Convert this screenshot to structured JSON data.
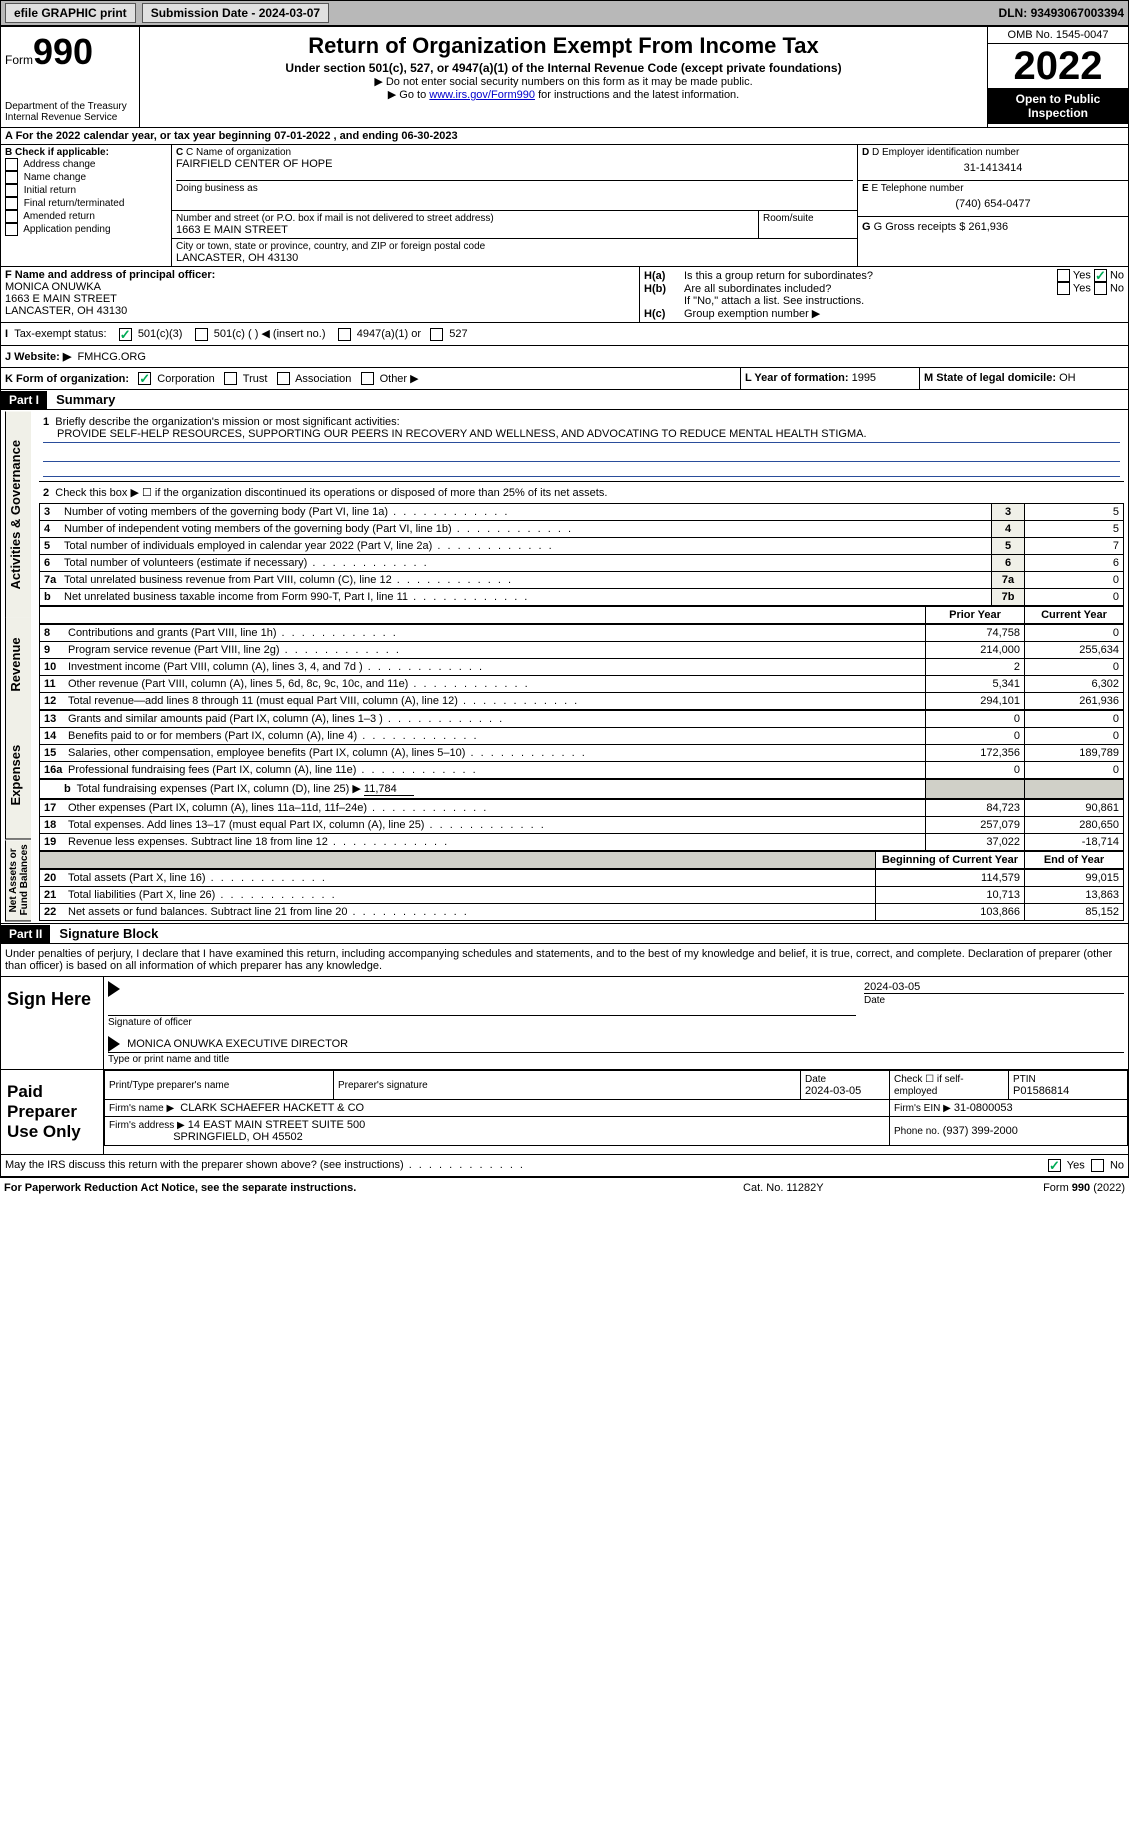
{
  "topbar": {
    "efile": "efile GRAPHIC print",
    "submission": "Submission Date - 2024-03-07",
    "dln_label": "DLN:",
    "dln": "93493067003394"
  },
  "header": {
    "form_word": "Form",
    "form_no": "990",
    "dept": "Department of the Treasury",
    "irs": "Internal Revenue Service",
    "title": "Return of Organization Exempt From Income Tax",
    "sub": "Under section 501(c), 527, or 4947(a)(1) of the Internal Revenue Code (except private foundations)",
    "note1": "▶ Do not enter social security numbers on this form as it may be made public.",
    "note2_a": "▶ Go to ",
    "note2_link": "www.irs.gov/Form990",
    "note2_b": " for instructions and the latest information.",
    "omb": "OMB No. 1545-0047",
    "year": "2022",
    "open": "Open to Public Inspection"
  },
  "a_line": "A For the 2022 calendar year, or tax year beginning 07-01-2022   , and ending 06-30-2023",
  "b": {
    "label": "B Check if applicable:",
    "items": [
      "Address change",
      "Name change",
      "Initial return",
      "Final return/terminated",
      "Amended return",
      "Application pending"
    ]
  },
  "c": {
    "name_lbl": "C Name of organization",
    "name": "FAIRFIELD CENTER OF HOPE",
    "dba_lbl": "Doing business as",
    "addr_lbl": "Number and street (or P.O. box if mail is not delivered to street address)",
    "room_lbl": "Room/suite",
    "addr": "1663 E MAIN STREET",
    "city_lbl": "City or town, state or province, country, and ZIP or foreign postal code",
    "city": "LANCASTER, OH  43130"
  },
  "d": {
    "lbl": "D Employer identification number",
    "val": "31-1413414"
  },
  "e": {
    "lbl": "E Telephone number",
    "val": "(740) 654-0477"
  },
  "g": {
    "lbl": "G Gross receipts $",
    "val": "261,936"
  },
  "f": {
    "lbl": "F  Name and address of principal officer:",
    "name": "MONICA ONUWKA",
    "addr1": "1663 E MAIN STREET",
    "addr2": "LANCASTER, OH  43130"
  },
  "h": {
    "a": "Is this a group return for subordinates?",
    "b": "Are all subordinates included?",
    "note": "If \"No,\" attach a list. See instructions.",
    "c": "Group exemption number ▶"
  },
  "i": {
    "lbl": "Tax-exempt status:",
    "opts": [
      "501(c)(3)",
      "501(c) (  ) ◀ (insert no.)",
      "4947(a)(1) or",
      "527"
    ]
  },
  "j": {
    "lbl": "J  Website: ▶",
    "val": "FMHCG.ORG"
  },
  "k": {
    "lbl": "K Form of organization:",
    "opts": [
      "Corporation",
      "Trust",
      "Association",
      "Other ▶"
    ]
  },
  "l": {
    "lbl": "L Year of formation:",
    "val": "1995"
  },
  "m": {
    "lbl": "M State of legal domicile:",
    "val": "OH"
  },
  "part1": {
    "hdr": "Part I",
    "title": "Summary",
    "mission_lbl": "Briefly describe the organization's mission or most significant activities:",
    "mission": "PROVIDE SELF-HELP RESOURCES, SUPPORTING OUR PEERS IN RECOVERY AND WELLNESS, AND ADVOCATING TO REDUCE MENTAL HEALTH STIGMA.",
    "line2": "Check this box ▶ ☐  if the organization discontinued its operations or disposed of more than 25% of its net assets.",
    "vlabels": {
      "ag": "Activities & Governance",
      "rev": "Revenue",
      "exp": "Expenses",
      "na": "Net Assets or Fund Balances"
    },
    "rows_ag": [
      {
        "n": "3",
        "d": "Number of voting members of the governing body (Part VI, line 1a)",
        "box": "3",
        "v": "5"
      },
      {
        "n": "4",
        "d": "Number of independent voting members of the governing body (Part VI, line 1b)",
        "box": "4",
        "v": "5"
      },
      {
        "n": "5",
        "d": "Total number of individuals employed in calendar year 2022 (Part V, line 2a)",
        "box": "5",
        "v": "7"
      },
      {
        "n": "6",
        "d": "Total number of volunteers (estimate if necessary)",
        "box": "6",
        "v": "6"
      },
      {
        "n": "7a",
        "d": "Total unrelated business revenue from Part VIII, column (C), line 12",
        "box": "7a",
        "v": "0"
      },
      {
        "n": "b",
        "d": "Net unrelated business taxable income from Form 990-T, Part I, line 11",
        "box": "7b",
        "v": "0"
      }
    ],
    "col_prior": "Prior Year",
    "col_curr": "Current Year",
    "rows_rev": [
      {
        "n": "8",
        "d": "Contributions and grants (Part VIII, line 1h)",
        "p": "74,758",
        "c": "0"
      },
      {
        "n": "9",
        "d": "Program service revenue (Part VIII, line 2g)",
        "p": "214,000",
        "c": "255,634"
      },
      {
        "n": "10",
        "d": "Investment income (Part VIII, column (A), lines 3, 4, and 7d )",
        "p": "2",
        "c": "0"
      },
      {
        "n": "11",
        "d": "Other revenue (Part VIII, column (A), lines 5, 6d, 8c, 9c, 10c, and 11e)",
        "p": "5,341",
        "c": "6,302"
      },
      {
        "n": "12",
        "d": "Total revenue—add lines 8 through 11 (must equal Part VIII, column (A), line 12)",
        "p": "294,101",
        "c": "261,936"
      }
    ],
    "rows_exp": [
      {
        "n": "13",
        "d": "Grants and similar amounts paid (Part IX, column (A), lines 1–3 )",
        "p": "0",
        "c": "0"
      },
      {
        "n": "14",
        "d": "Benefits paid to or for members (Part IX, column (A), line 4)",
        "p": "0",
        "c": "0"
      },
      {
        "n": "15",
        "d": "Salaries, other compensation, employee benefits (Part IX, column (A), lines 5–10)",
        "p": "172,356",
        "c": "189,789"
      },
      {
        "n": "16a",
        "d": "Professional fundraising fees (Part IX, column (A), line 11e)",
        "p": "0",
        "c": "0"
      }
    ],
    "row_16b": {
      "n": "b",
      "d": "Total fundraising expenses (Part IX, column (D), line 25) ▶",
      "v": "11,784"
    },
    "rows_exp2": [
      {
        "n": "17",
        "d": "Other expenses (Part IX, column (A), lines 11a–11d, 11f–24e)",
        "p": "84,723",
        "c": "90,861"
      },
      {
        "n": "18",
        "d": "Total expenses. Add lines 13–17 (must equal Part IX, column (A), line 25)",
        "p": "257,079",
        "c": "280,650"
      },
      {
        "n": "19",
        "d": "Revenue less expenses. Subtract line 18 from line 12",
        "p": "37,022",
        "c": "-18,714"
      }
    ],
    "col_beg": "Beginning of Current Year",
    "col_end": "End of Year",
    "rows_na": [
      {
        "n": "20",
        "d": "Total assets (Part X, line 16)",
        "p": "114,579",
        "c": "99,015"
      },
      {
        "n": "21",
        "d": "Total liabilities (Part X, line 26)",
        "p": "10,713",
        "c": "13,863"
      },
      {
        "n": "22",
        "d": "Net assets or fund balances. Subtract line 21 from line 20",
        "p": "103,866",
        "c": "85,152"
      }
    ]
  },
  "part2": {
    "hdr": "Part II",
    "title": "Signature Block",
    "decl": "Under penalties of perjury, I declare that I have examined this return, including accompanying schedules and statements, and to the best of my knowledge and belief, it is true, correct, and complete. Declaration of preparer (other than officer) is based on all information of which preparer has any knowledge.",
    "sign_here": "Sign Here",
    "sig_officer": "Signature of officer",
    "sig_date": "2024-03-05",
    "date_lbl": "Date",
    "officer_name": "MONICA ONUWKA  EXECUTIVE DIRECTOR",
    "type_lbl": "Type or print name and title",
    "paid": "Paid Preparer Use Only",
    "prep_name_lbl": "Print/Type preparer's name",
    "prep_sig_lbl": "Preparer's signature",
    "prep_date_lbl": "Date",
    "prep_date": "2024-03-05",
    "self_emp": "Check ☐ if self-employed",
    "ptin_lbl": "PTIN",
    "ptin": "P01586814",
    "firm_name_lbl": "Firm's name    ▶",
    "firm_name": "CLARK SCHAEFER HACKETT & CO",
    "firm_ein_lbl": "Firm's EIN ▶",
    "firm_ein": "31-0800053",
    "firm_addr_lbl": "Firm's address ▶",
    "firm_addr1": "14 EAST MAIN STREET SUITE 500",
    "firm_addr2": "SPRINGFIELD, OH  45502",
    "phone_lbl": "Phone no.",
    "phone": "(937) 399-2000",
    "may_irs": "May the IRS discuss this return with the preparer shown above? (see instructions)",
    "yes": "Yes",
    "no": "No"
  },
  "footer": {
    "left": "For Paperwork Reduction Act Notice, see the separate instructions.",
    "center": "Cat. No. 11282Y",
    "right": "Form 990 (2022)"
  },
  "colors": {
    "topbar_bg": "#b8b8b8",
    "shade": "#d0d0c8",
    "link": "#0000cc"
  }
}
